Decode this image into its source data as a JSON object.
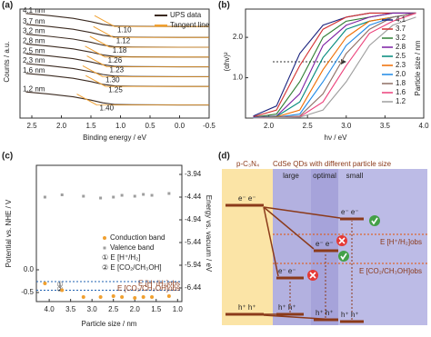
{
  "chart_data": [
    {
      "type": "line",
      "label": "(a)",
      "ylabel": "Counts / a.u.",
      "xlabel": "Binding energy / eV",
      "xlim": [
        2.7,
        -0.5
      ],
      "xticks": [
        2.5,
        {
          "value": 2,
          "label": "2.0"
        },
        1.5,
        {
          "value": 1,
          "label": "1.0"
        },
        0.5,
        {
          "value": 0,
          "label": "0.0"
        },
        -0.5
      ],
      "ylim": [
        0,
        10
      ],
      "legend": [
        "UPS data",
        "Tangent line"
      ],
      "legend_colors": [
        "#3b2a20",
        "#f0a030"
      ],
      "x": [
        2.6,
        2.2,
        1.8,
        1.5,
        1.3,
        1.1,
        0.8,
        0.4,
        0.0,
        -0.5
      ],
      "series": [
        {
          "name": "4.1 nm",
          "color": "#3b2a20",
          "values": [
            9.6,
            9.4,
            9.15,
            8.85,
            8.6,
            8.45,
            8.42,
            8.41,
            8.4,
            8.4
          ]
        },
        {
          "name": "3.7 nm",
          "color": "#3b2a20",
          "values": [
            8.6,
            8.4,
            8.15,
            7.85,
            7.6,
            7.45,
            7.42,
            7.41,
            7.4,
            7.4
          ]
        },
        {
          "name": "3.2 nm",
          "color": "#3b2a20",
          "values": [
            7.7,
            7.5,
            7.25,
            6.95,
            6.7,
            6.55,
            6.52,
            6.51,
            6.5,
            6.5
          ]
        },
        {
          "name": "2.8 nm",
          "color": "#3b2a20",
          "values": [
            6.8,
            6.6,
            6.35,
            6.05,
            5.8,
            5.65,
            5.62,
            5.61,
            5.6,
            5.6
          ]
        },
        {
          "name": "2.5 nm",
          "color": "#3b2a20",
          "values": [
            5.9,
            5.7,
            5.45,
            5.15,
            4.9,
            4.75,
            4.72,
            4.71,
            4.7,
            4.7
          ]
        },
        {
          "name": "2.3 nm",
          "color": "#3b2a20",
          "values": [
            5.0,
            4.8,
            4.55,
            4.25,
            4.0,
            3.85,
            3.82,
            3.81,
            3.8,
            3.8
          ]
        },
        {
          "name": "1.6 nm",
          "color": "#3b2a20",
          "values": [
            4.1,
            3.9,
            3.65,
            3.35,
            3.1,
            2.95,
            2.92,
            2.91,
            2.9,
            2.9
          ]
        },
        {
          "name": "1.2 nm",
          "color": "#3b2a20",
          "values": [
            2.4,
            2.2,
            1.95,
            1.65,
            1.4,
            1.25,
            1.22,
            1.21,
            1.2,
            1.2
          ]
        }
      ],
      "tangent": {
        "values": [
          1.1,
          1.12,
          1.18,
          1.26,
          1.23,
          1.3,
          1.25,
          1.4
        ],
        "value_labels": [
          "1.10",
          "1.12",
          "1.18",
          "1.26",
          "1.23",
          "1.30",
          "1.25",
          "1.40"
        ]
      }
    },
    {
      "type": "line",
      "label": "(b)",
      "ylabel": "(αhν)²",
      "xlabel": "hν / eV",
      "legend_title": "Particle size / nm",
      "xlim": [
        1.7,
        4.0
      ],
      "xticks": [
        {
          "value": 2,
          "label": "2.0"
        },
        2.5,
        {
          "value": 3,
          "label": "3.0"
        },
        3.5,
        {
          "value": 4,
          "label": "4.0"
        }
      ],
      "ylim": [
        0,
        2.7
      ],
      "yticks": [
        {
          "value": 1,
          "label": "1.0"
        },
        {
          "value": 2,
          "label": "2.0"
        }
      ],
      "x": [
        1.8,
        2.1,
        2.4,
        2.7,
        3.0,
        3.3,
        3.6,
        3.9
      ],
      "series": [
        {
          "name": "4.1",
          "color": "#1a237e",
          "values": [
            0.05,
            0.3,
            1.6,
            2.3,
            2.5,
            2.6,
            2.6,
            2.6
          ]
        },
        {
          "name": "3.7",
          "color": "#d32f2f",
          "values": [
            0.03,
            0.2,
            1.3,
            2.2,
            2.5,
            2.6,
            2.6,
            2.6
          ]
        },
        {
          "name": "3.2",
          "color": "#2e7d32",
          "values": [
            0.02,
            0.1,
            0.9,
            2.0,
            2.4,
            2.5,
            2.6,
            2.6
          ]
        },
        {
          "name": "2.8",
          "color": "#7b1fa2",
          "values": [
            0.02,
            0.05,
            0.6,
            1.8,
            2.3,
            2.5,
            2.6,
            2.6
          ]
        },
        {
          "name": "2.5",
          "color": "#00897b",
          "values": [
            0.01,
            0.04,
            0.4,
            1.5,
            2.2,
            2.4,
            2.5,
            2.6
          ]
        },
        {
          "name": "2.3",
          "color": "#ef6c00",
          "values": [
            0.01,
            0.03,
            0.2,
            1.2,
            2.0,
            2.4,
            2.5,
            2.6
          ]
        },
        {
          "name": "2.0",
          "color": "#1e88e5",
          "values": [
            0.01,
            0.02,
            0.1,
            0.9,
            1.8,
            2.3,
            2.5,
            2.6
          ]
        },
        {
          "name": "1.8",
          "color": "#8d6e63",
          "values": [
            0,
            0.02,
            0.05,
            0.6,
            1.6,
            2.2,
            2.5,
            2.6
          ]
        },
        {
          "name": "1.6",
          "color": "#ec407a",
          "values": [
            0,
            0.01,
            0.03,
            0.4,
            1.3,
            2.1,
            2.4,
            2.6
          ]
        },
        {
          "name": "1.2",
          "color": "#9e9e9e",
          "values": [
            0,
            0.01,
            0.02,
            0.2,
            0.9,
            1.8,
            2.3,
            2.5
          ]
        }
      ]
    },
    {
      "type": "scatter",
      "label": "(c)",
      "ylabel": "Potential vs. NHE / V",
      "y2label": "Energy vs. vacuum / eV",
      "xlabel": "Particle size / nm",
      "xlim": [
        4.3,
        0.9
      ],
      "xticks": [
        {
          "value": 4,
          "label": "4.0"
        },
        3.5,
        {
          "value": 3,
          "label": "3.0"
        },
        2.5,
        {
          "value": 2,
          "label": "2.0"
        },
        1.5,
        {
          "value": 1,
          "label": "1.0"
        }
      ],
      "ylim": [
        -0.7,
        2.3
      ],
      "yticks": [
        -0.5,
        {
          "value": 0,
          "label": "0.0"
        }
      ],
      "y2lim": [
        -3.74,
        -6.74
      ],
      "y2ticks": [
        -3.94,
        -4.44,
        -4.94,
        -5.44,
        -5.94,
        -6.44
      ],
      "x": [
        4.1,
        3.7,
        3.2,
        2.8,
        2.5,
        2.3,
        2.0,
        1.8,
        1.6,
        1.2
      ],
      "series": [
        {
          "name": "Conduction band",
          "color": "#f0a030",
          "values": [
            -0.3,
            -0.45,
            -0.6,
            -0.6,
            -0.58,
            -0.6,
            -0.62,
            -0.6,
            -0.6,
            -0.58
          ]
        },
        {
          "name": "Valence band",
          "color": "#9e9e9e",
          "values": [
            1.6,
            1.65,
            1.62,
            1.58,
            1.6,
            1.64,
            1.62,
            1.66,
            1.64,
            1.68
          ]
        }
      ],
      "reference_lines": [
        {
          "marker": "①",
          "label": "E [H⁺/H₂]obs",
          "legend": "① E [H⁺/H₂]",
          "value": -0.45
        },
        {
          "marker": "②",
          "label": "E [CO₂/CH₃OH]obs",
          "legend": "② E [CO₂/CH₃OH]",
          "value": -0.26
        }
      ]
    }
  ],
  "diagram": {
    "label": "(d)",
    "title": "CdSe QDs with different particle size",
    "donor": "p-C₃N₄",
    "columns": [
      "large",
      "optimal",
      "small"
    ],
    "electrons": "e⁻  e⁻",
    "holes": "h⁺ h⁺",
    "levels": [
      "E [H⁺/H₂]obs",
      "E [CO₂/CH₃OH]obs"
    ]
  }
}
